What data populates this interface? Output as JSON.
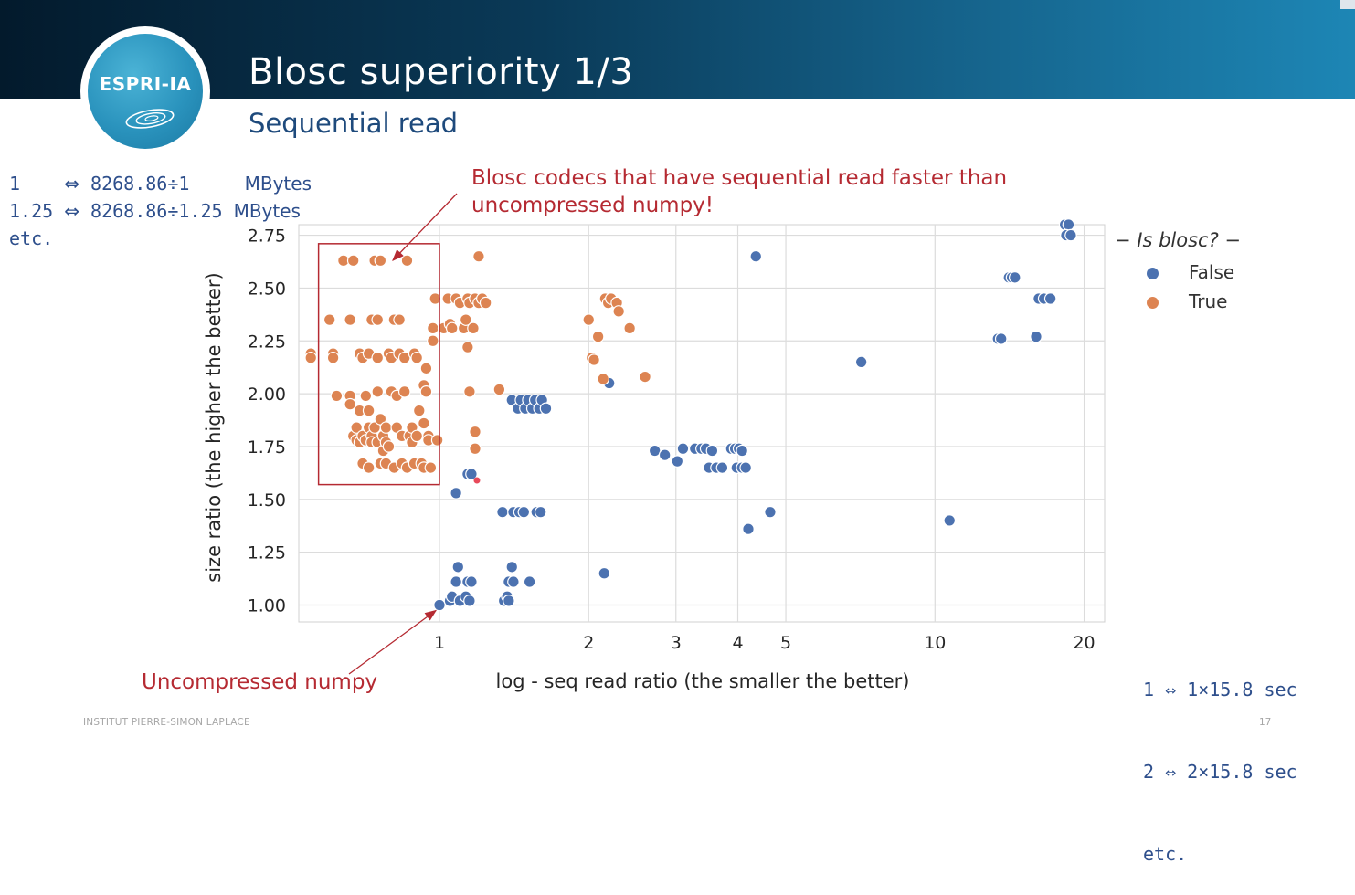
{
  "slide": {
    "logo_text": "ESPRI-IA",
    "title": "Blosc superiority 1/3",
    "subtitle": "Sequential read",
    "footer_left": "INSTITUT PIERRE-SIMON LAPLACE",
    "footer_right": "17"
  },
  "notes": {
    "left": [
      {
        "a": "1    ",
        "arrow": "⇔",
        "expr": "8268.86÷1     ",
        "unit": "MBytes"
      },
      {
        "a": "1.25 ",
        "arrow": "⇔",
        "expr": "8268.86÷1.25 ",
        "unit": "MBytes"
      }
    ],
    "left_etc": "etc.",
    "right": [
      "1 ⇔ 1×15.8 sec",
      "2 ⇔ 2×15.8 sec",
      "etc."
    ]
  },
  "annotations": {
    "blosc_faster": [
      "Blosc codecs that have sequential read faster than",
      "uncompressed numpy!"
    ],
    "uncompressed": "Uncompressed numpy"
  },
  "colors": {
    "false_series": "#4c72b0",
    "true_series": "#dd8452",
    "annotation": "#b52a32",
    "note_text": "#2e4f8c",
    "header_dark": "#031a2c",
    "header_light": "#1d86b5"
  },
  "chart_data": {
    "type": "scatter",
    "xscale": "log",
    "xlabel": "log - seq read ratio (the smaller the better)",
    "ylabel": "size ratio (the higher the better)",
    "xlim": [
      0.52,
      22
    ],
    "ylim": [
      0.92,
      2.8
    ],
    "xticks": [
      1,
      2,
      3,
      4,
      5,
      10,
      20
    ],
    "xtick_labels": [
      "1",
      "2",
      "3",
      "4",
      "5",
      "10",
      "20"
    ],
    "yticks": [
      1.0,
      1.25,
      1.5,
      1.75,
      2.0,
      2.25,
      2.5,
      2.75
    ],
    "ytick_labels": [
      "1.00",
      "1.25",
      "1.50",
      "1.75",
      "2.00",
      "2.25",
      "2.50",
      "2.75"
    ],
    "grid": true,
    "legend": {
      "title": "Is blosc?",
      "position": "outside-right"
    },
    "series": [
      {
        "name": "False",
        "color": "#4c72b0",
        "points": [
          [
            1.0,
            1.0
          ],
          [
            1.05,
            1.02
          ],
          [
            1.06,
            1.04
          ],
          [
            1.08,
            1.11
          ],
          [
            1.09,
            1.18
          ],
          [
            1.1,
            1.02
          ],
          [
            1.13,
            1.04
          ],
          [
            1.14,
            1.11
          ],
          [
            1.15,
            1.02
          ],
          [
            1.16,
            1.11
          ],
          [
            1.08,
            1.53
          ],
          [
            1.14,
            1.62
          ],
          [
            1.16,
            1.62
          ],
          [
            1.35,
            1.02
          ],
          [
            1.37,
            1.04
          ],
          [
            1.38,
            1.02
          ],
          [
            1.38,
            1.11
          ],
          [
            1.4,
            1.18
          ],
          [
            1.41,
            1.11
          ],
          [
            1.52,
            1.11
          ],
          [
            1.34,
            1.44
          ],
          [
            1.41,
            1.44
          ],
          [
            1.45,
            1.44
          ],
          [
            1.48,
            1.44
          ],
          [
            1.57,
            1.44
          ],
          [
            1.6,
            1.44
          ],
          [
            1.4,
            1.97
          ],
          [
            1.44,
            1.93
          ],
          [
            1.46,
            1.97
          ],
          [
            1.49,
            1.93
          ],
          [
            1.51,
            1.97
          ],
          [
            1.54,
            1.93
          ],
          [
            1.56,
            1.97
          ],
          [
            1.59,
            1.93
          ],
          [
            1.61,
            1.97
          ],
          [
            1.64,
            1.93
          ],
          [
            2.2,
            2.05
          ],
          [
            2.15,
            1.15
          ],
          [
            2.72,
            1.73
          ],
          [
            2.85,
            1.71
          ],
          [
            3.02,
            1.68
          ],
          [
            3.1,
            1.74
          ],
          [
            3.28,
            1.74
          ],
          [
            3.38,
            1.74
          ],
          [
            3.45,
            1.74
          ],
          [
            3.55,
            1.73
          ],
          [
            3.5,
            1.65
          ],
          [
            3.62,
            1.65
          ],
          [
            3.72,
            1.65
          ],
          [
            3.88,
            1.74
          ],
          [
            3.95,
            1.74
          ],
          [
            4.02,
            1.74
          ],
          [
            4.08,
            1.73
          ],
          [
            3.98,
            1.65
          ],
          [
            4.08,
            1.65
          ],
          [
            4.15,
            1.65
          ],
          [
            4.35,
            2.65
          ],
          [
            4.2,
            1.36
          ],
          [
            4.65,
            1.44
          ],
          [
            7.1,
            2.15
          ],
          [
            10.7,
            1.4
          ],
          [
            13.4,
            2.26
          ],
          [
            13.6,
            2.26
          ],
          [
            14.1,
            2.55
          ],
          [
            14.3,
            2.55
          ],
          [
            14.5,
            2.55
          ],
          [
            16.0,
            2.27
          ],
          [
            16.2,
            2.45
          ],
          [
            16.6,
            2.45
          ],
          [
            17.1,
            2.45
          ],
          [
            18.3,
            2.8
          ],
          [
            18.6,
            2.8
          ],
          [
            18.4,
            2.75
          ],
          [
            18.8,
            2.75
          ]
        ]
      },
      {
        "name": "True",
        "color": "#dd8452",
        "points": [
          [
            0.55,
            2.19
          ],
          [
            0.55,
            2.17
          ],
          [
            0.6,
            2.35
          ],
          [
            0.61,
            2.19
          ],
          [
            0.61,
            2.17
          ],
          [
            0.62,
            1.99
          ],
          [
            0.64,
            2.63
          ],
          [
            0.66,
            2.35
          ],
          [
            0.66,
            1.99
          ],
          [
            0.66,
            1.95
          ],
          [
            0.67,
            2.63
          ],
          [
            0.67,
            1.8
          ],
          [
            0.68,
            1.84
          ],
          [
            0.68,
            1.78
          ],
          [
            0.69,
            1.77
          ],
          [
            0.69,
            1.92
          ],
          [
            0.69,
            2.19
          ],
          [
            0.7,
            2.17
          ],
          [
            0.7,
            1.8
          ],
          [
            0.7,
            1.67
          ],
          [
            0.71,
            1.78
          ],
          [
            0.71,
            1.99
          ],
          [
            0.72,
            2.19
          ],
          [
            0.72,
            1.92
          ],
          [
            0.72,
            1.84
          ],
          [
            0.72,
            1.65
          ],
          [
            0.73,
            2.35
          ],
          [
            0.73,
            1.8
          ],
          [
            0.73,
            1.77
          ],
          [
            0.74,
            2.63
          ],
          [
            0.74,
            1.84
          ],
          [
            0.75,
            2.35
          ],
          [
            0.75,
            2.17
          ],
          [
            0.75,
            1.77
          ],
          [
            0.75,
            2.01
          ],
          [
            0.76,
            1.88
          ],
          [
            0.76,
            1.67
          ],
          [
            0.76,
            2.63
          ],
          [
            0.77,
            1.8
          ],
          [
            0.77,
            1.73
          ],
          [
            0.78,
            1.77
          ],
          [
            0.78,
            1.84
          ],
          [
            0.78,
            1.67
          ],
          [
            0.79,
            2.19
          ],
          [
            0.79,
            1.75
          ],
          [
            0.8,
            2.01
          ],
          [
            0.8,
            2.17
          ],
          [
            0.81,
            1.65
          ],
          [
            0.81,
            2.35
          ],
          [
            0.82,
            1.99
          ],
          [
            0.82,
            1.84
          ],
          [
            0.83,
            2.19
          ],
          [
            0.83,
            2.35
          ],
          [
            0.84,
            1.8
          ],
          [
            0.84,
            1.67
          ],
          [
            0.85,
            2.01
          ],
          [
            0.85,
            2.17
          ],
          [
            0.86,
            1.65
          ],
          [
            0.86,
            2.63
          ],
          [
            0.87,
            1.8
          ],
          [
            0.88,
            1.84
          ],
          [
            0.88,
            1.77
          ],
          [
            0.89,
            2.19
          ],
          [
            0.89,
            1.67
          ],
          [
            0.9,
            2.17
          ],
          [
            0.9,
            1.8
          ],
          [
            0.91,
            1.92
          ],
          [
            0.92,
            1.67
          ],
          [
            0.93,
            2.04
          ],
          [
            0.93,
            1.86
          ],
          [
            0.93,
            1.65
          ],
          [
            0.94,
            2.01
          ],
          [
            0.94,
            2.12
          ],
          [
            0.95,
            1.8
          ],
          [
            0.95,
            1.78
          ],
          [
            0.96,
            1.65
          ],
          [
            0.97,
            2.25
          ],
          [
            0.97,
            2.31
          ],
          [
            0.98,
            2.45
          ],
          [
            0.99,
            1.78
          ],
          [
            1.02,
            2.31
          ],
          [
            1.04,
            2.45
          ],
          [
            1.05,
            2.33
          ],
          [
            1.06,
            2.31
          ],
          [
            1.08,
            2.45
          ],
          [
            1.1,
            2.43
          ],
          [
            1.12,
            2.31
          ],
          [
            1.13,
            2.35
          ],
          [
            1.14,
            2.45
          ],
          [
            1.14,
            2.22
          ],
          [
            1.15,
            2.43
          ],
          [
            1.15,
            2.01
          ],
          [
            1.17,
            2.31
          ],
          [
            1.18,
            1.82
          ],
          [
            1.18,
            1.74
          ],
          [
            1.18,
            2.45
          ],
          [
            1.2,
            2.43
          ],
          [
            1.2,
            2.65
          ],
          [
            1.22,
            2.45
          ],
          [
            1.24,
            2.43
          ],
          [
            1.32,
            2.02
          ],
          [
            2.0,
            2.35
          ],
          [
            2.03,
            2.17
          ],
          [
            2.05,
            2.16
          ],
          [
            2.09,
            2.27
          ],
          [
            2.14,
            2.07
          ],
          [
            2.16,
            2.45
          ],
          [
            2.19,
            2.43
          ],
          [
            2.22,
            2.45
          ],
          [
            2.28,
            2.43
          ],
          [
            2.3,
            2.39
          ],
          [
            2.42,
            2.31
          ],
          [
            2.6,
            2.08
          ]
        ]
      }
    ],
    "highlight_box": {
      "x": [
        0.57,
        1.0
      ],
      "y": [
        1.57,
        2.71
      ]
    },
    "highlight_point": [
      1.19,
      1.59
    ]
  }
}
